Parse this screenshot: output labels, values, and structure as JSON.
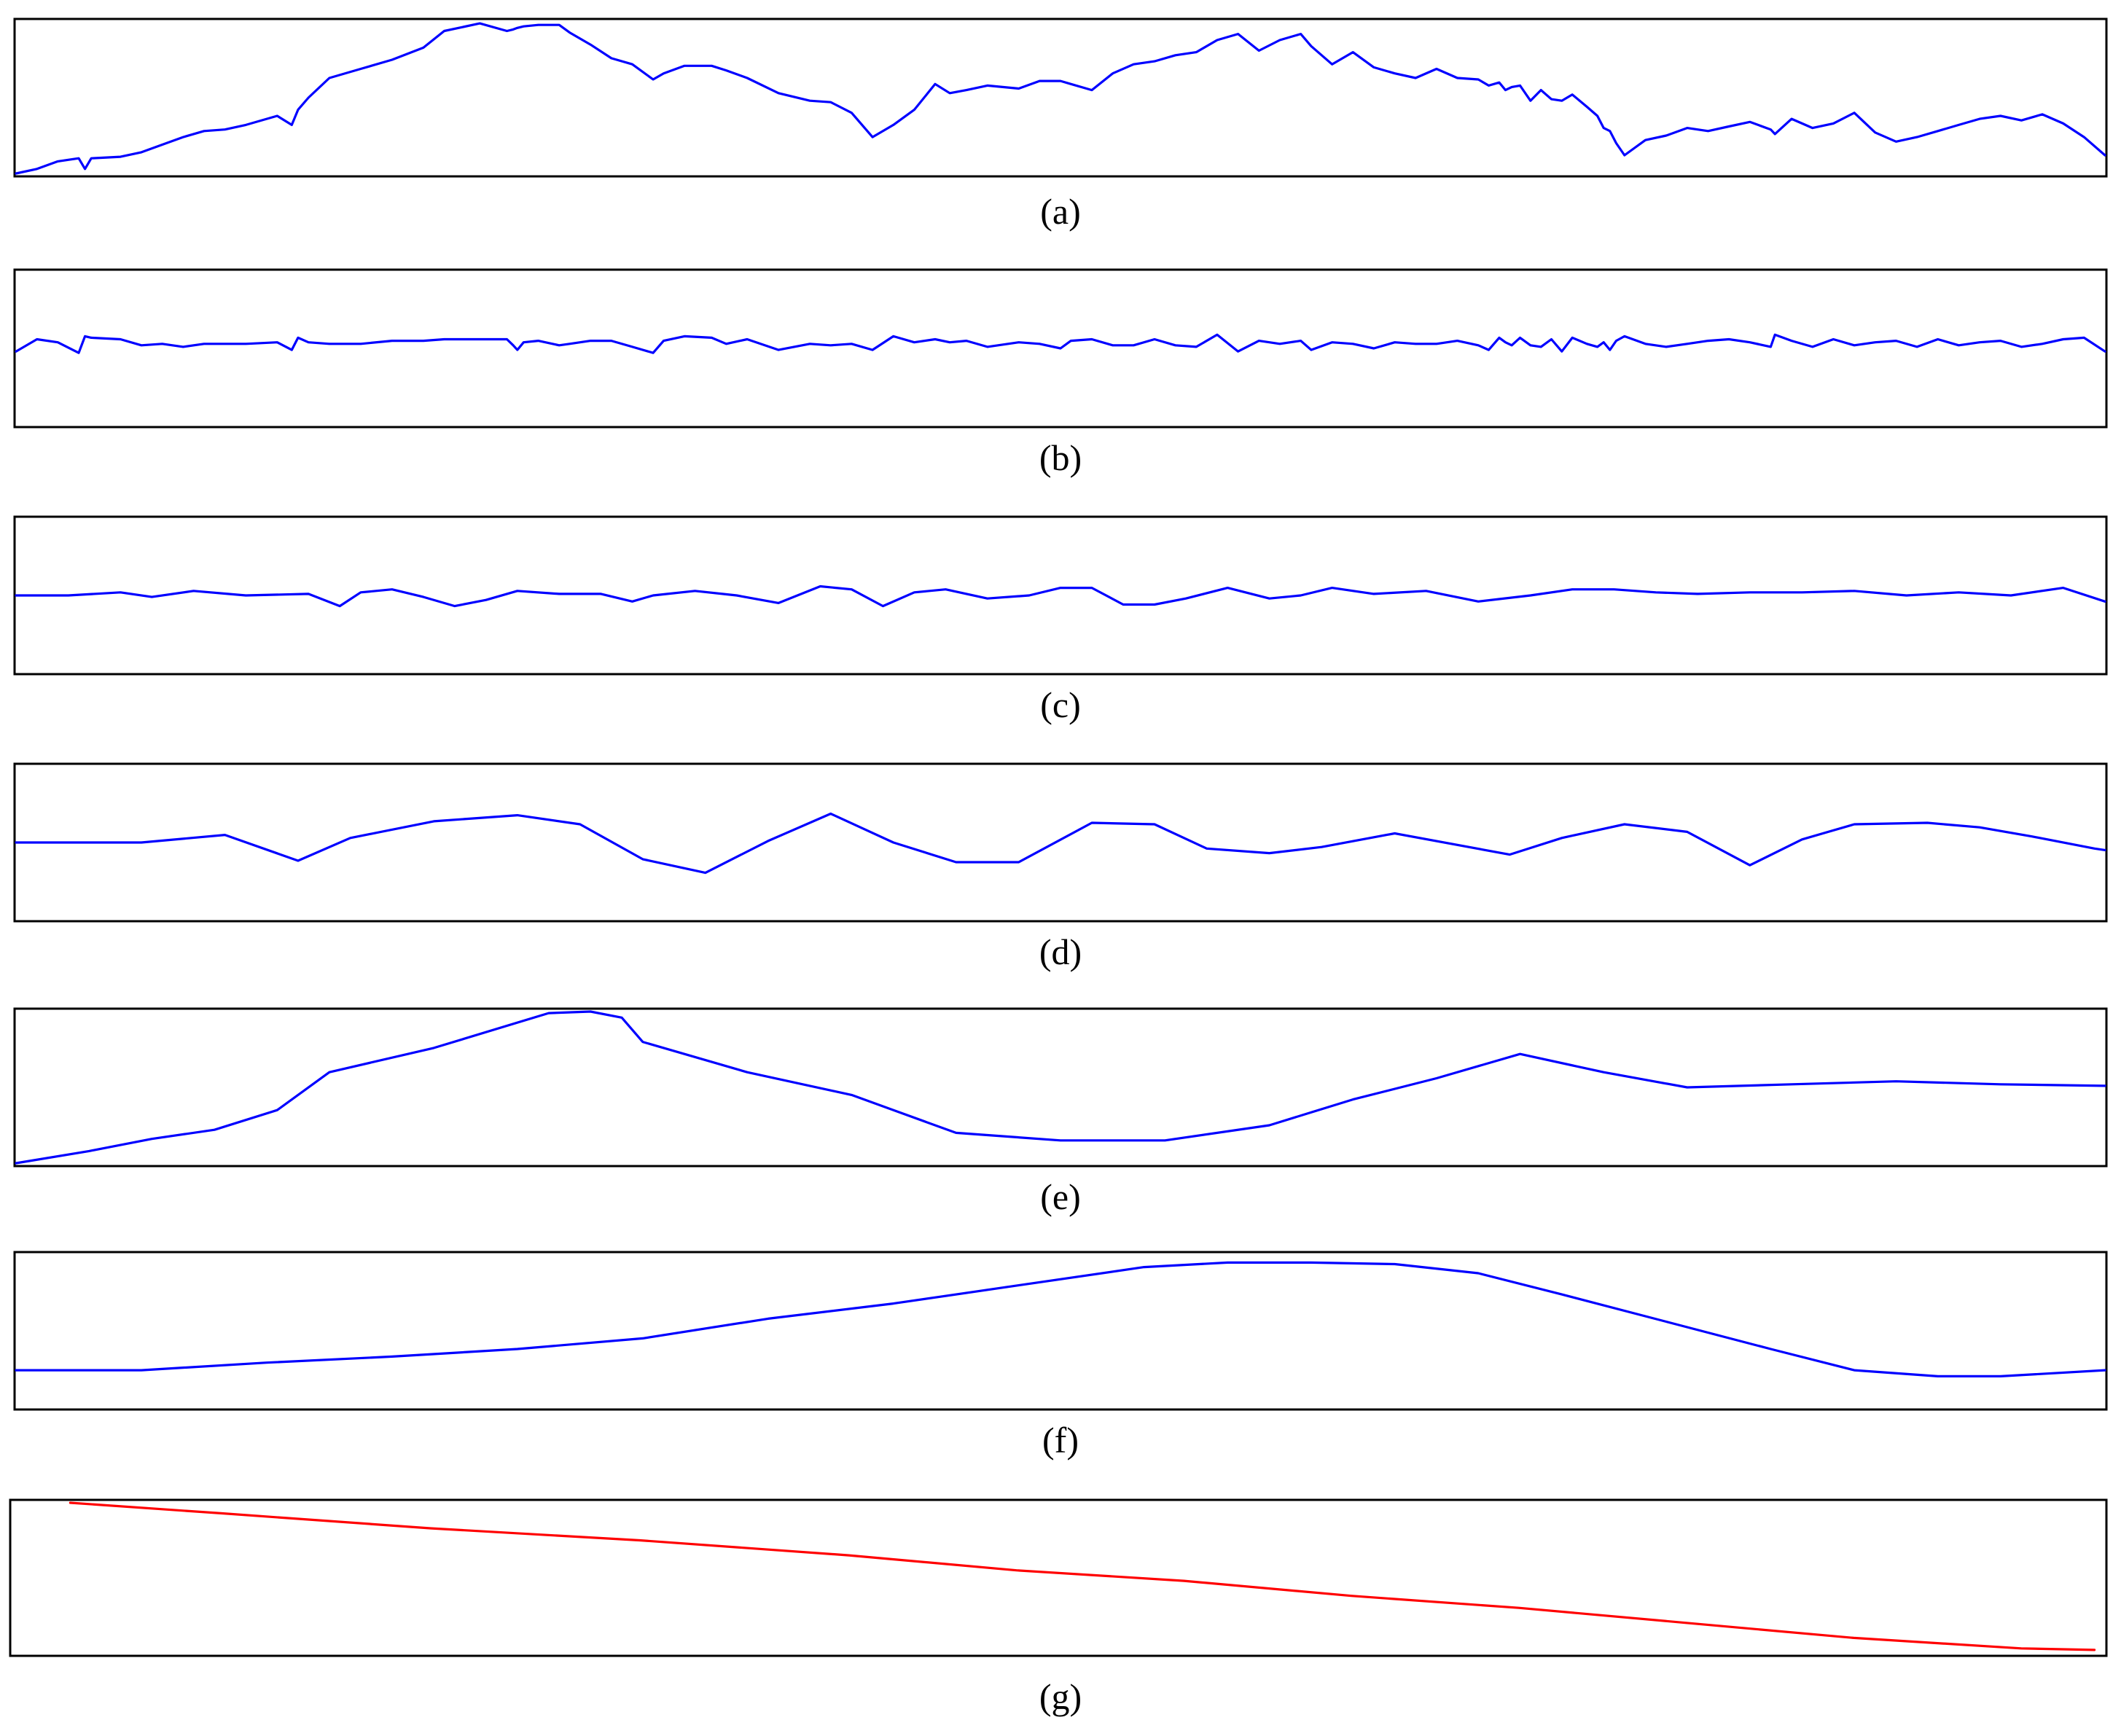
{
  "chart_data": [
    {
      "type": "line",
      "caption": "(a)",
      "color": "#0000ff",
      "xlim": [
        0,
        1000
      ],
      "ylim": [
        0,
        100
      ],
      "x": [
        0,
        10,
        20,
        30,
        33,
        36,
        50,
        60,
        70,
        80,
        90,
        100,
        110,
        125,
        132,
        135,
        140,
        150,
        165,
        180,
        195,
        205,
        222,
        235,
        238,
        240,
        243,
        250,
        260,
        265,
        275,
        285,
        295,
        305,
        310,
        320,
        333,
        340,
        350,
        365,
        380,
        390,
        400,
        410,
        420,
        430,
        440,
        447,
        455,
        465,
        480,
        490,
        500,
        505,
        515,
        525,
        535,
        545,
        555,
        565,
        575,
        585,
        595,
        605,
        615,
        620,
        630,
        640,
        650,
        660,
        670,
        680,
        690,
        700,
        705,
        710,
        713,
        716,
        720,
        725,
        730,
        735,
        740,
        745,
        752,
        757,
        760,
        763,
        766,
        770,
        780,
        790,
        800,
        810,
        820,
        830,
        840,
        842,
        850,
        860,
        870,
        880,
        890,
        900,
        910,
        920,
        930,
        940,
        950,
        960,
        970,
        980,
        990,
        1000
      ],
      "y": [
        0,
        3,
        8,
        10,
        3,
        10,
        11,
        14,
        19,
        24,
        28,
        29,
        32,
        38,
        32,
        42,
        50,
        63,
        69,
        75,
        83,
        94,
        99,
        94,
        95,
        96,
        97,
        98,
        98,
        93,
        85,
        76,
        72,
        62,
        66,
        71,
        71,
        68,
        63,
        53,
        48,
        47,
        40,
        24,
        32,
        42,
        59,
        53,
        55,
        58,
        56,
        61,
        61,
        59,
        55,
        66,
        72,
        74,
        78,
        80,
        88,
        92,
        81,
        88,
        92,
        84,
        72,
        80,
        70,
        66,
        63,
        69,
        63,
        62,
        58,
        60,
        55,
        57,
        58,
        48,
        55,
        49,
        48,
        52,
        44,
        38,
        30,
        28,
        20,
        12,
        22,
        25,
        30,
        28,
        31,
        34,
        29,
        26,
        36,
        30,
        33,
        40,
        27,
        21,
        24,
        28,
        32,
        36,
        38,
        35,
        39,
        33,
        24,
        12
      ]
    },
    {
      "type": "line",
      "caption": "(b)",
      "color": "#0000ff",
      "xlim": [
        0,
        1000
      ],
      "ylim": [
        0,
        100
      ],
      "x": [
        0,
        10,
        20,
        30,
        33,
        36,
        50,
        60,
        70,
        80,
        90,
        100,
        110,
        125,
        132,
        135,
        140,
        150,
        165,
        180,
        195,
        205,
        222,
        235,
        238,
        240,
        243,
        250,
        260,
        265,
        275,
        285,
        295,
        305,
        310,
        320,
        333,
        340,
        350,
        365,
        380,
        390,
        400,
        410,
        420,
        430,
        440,
        447,
        455,
        465,
        480,
        490,
        500,
        505,
        515,
        525,
        535,
        545,
        555,
        565,
        575,
        585,
        595,
        605,
        615,
        620,
        630,
        640,
        650,
        660,
        670,
        680,
        690,
        700,
        705,
        710,
        713,
        716,
        720,
        725,
        730,
        735,
        740,
        745,
        752,
        757,
        760,
        763,
        766,
        770,
        780,
        790,
        800,
        810,
        820,
        830,
        840,
        842,
        850,
        860,
        870,
        880,
        890,
        900,
        910,
        920,
        930,
        940,
        950,
        960,
        970,
        980,
        990,
        1000
      ],
      "y": [
        48,
        56,
        54,
        47,
        58,
        57,
        56,
        52,
        53,
        51,
        53,
        53,
        53,
        54,
        49,
        57,
        54,
        53,
        53,
        55,
        55,
        56,
        56,
        56,
        52,
        49,
        54,
        55,
        52,
        53,
        55,
        55,
        51,
        47,
        55,
        58,
        57,
        53,
        56,
        49,
        53,
        52,
        53,
        49,
        58,
        54,
        56,
        54,
        55,
        51,
        54,
        53,
        50,
        55,
        56,
        52,
        52,
        56,
        52,
        51,
        59,
        48,
        55,
        53,
        55,
        49,
        54,
        53,
        50,
        54,
        53,
        53,
        55,
        52,
        49,
        57,
        54,
        52,
        57,
        52,
        51,
        56,
        48,
        57,
        53,
        51,
        54,
        49,
        55,
        58,
        53,
        51,
        53,
        55,
        56,
        54,
        51,
        59,
        55,
        51,
        56,
        52,
        54,
        55,
        51,
        56,
        52,
        54,
        55,
        51,
        53,
        56,
        57,
        48
      ]
    },
    {
      "type": "line",
      "caption": "(c)",
      "color": "#0000ff",
      "xlim": [
        0,
        1000
      ],
      "ylim": [
        0,
        100
      ],
      "x": [
        0,
        25,
        50,
        65,
        85,
        110,
        140,
        155,
        165,
        180,
        195,
        210,
        225,
        240,
        260,
        280,
        295,
        305,
        325,
        345,
        365,
        385,
        400,
        415,
        430,
        445,
        465,
        485,
        500,
        515,
        530,
        545,
        560,
        580,
        600,
        615,
        630,
        650,
        675,
        700,
        725,
        745,
        765,
        785,
        805,
        830,
        855,
        880,
        905,
        930,
        955,
        980,
        1000
      ],
      "y": [
        50,
        50,
        52,
        49,
        53,
        50,
        51,
        43,
        52,
        54,
        49,
        43,
        47,
        53,
        51,
        51,
        46,
        50,
        53,
        50,
        45,
        56,
        54,
        43,
        52,
        54,
        48,
        50,
        55,
        55,
        44,
        44,
        48,
        55,
        48,
        50,
        55,
        51,
        53,
        46,
        50,
        54,
        54,
        52,
        51,
        52,
        52,
        53,
        50,
        52,
        50,
        55,
        46
      ]
    },
    {
      "type": "line",
      "caption": "(d)",
      "color": "#0000ff",
      "xlim": [
        0,
        1000
      ],
      "ylim": [
        0,
        100
      ],
      "x": [
        0,
        60,
        100,
        135,
        160,
        200,
        240,
        270,
        300,
        330,
        360,
        390,
        420,
        450,
        480,
        515,
        545,
        570,
        600,
        625,
        660,
        715,
        740,
        770,
        800,
        830,
        855,
        880,
        915,
        940,
        965,
        995,
        1000
      ],
      "y": [
        50,
        50,
        55,
        38,
        53,
        64,
        68,
        62,
        39,
        30,
        51,
        69,
        50,
        37,
        37,
        63,
        62,
        46,
        43,
        47,
        56,
        42,
        53,
        62,
        57,
        35,
        52,
        62,
        63,
        60,
        54,
        46,
        45
      ]
    },
    {
      "type": "line",
      "caption": "(e)",
      "color": "#0000ff",
      "xlim": [
        0,
        1000
      ],
      "ylim": [
        0,
        100
      ],
      "x": [
        0,
        35,
        65,
        95,
        125,
        150,
        200,
        255,
        275,
        290,
        300,
        350,
        400,
        450,
        500,
        550,
        600,
        640,
        680,
        720,
        760,
        800,
        850,
        900,
        950,
        1000
      ],
      "y": [
        0,
        8,
        16,
        22,
        35,
        60,
        76,
        99,
        100,
        96,
        80,
        60,
        45,
        20,
        15,
        15,
        25,
        42,
        56,
        72,
        60,
        50,
        52,
        54,
        52,
        51
      ]
    },
    {
      "type": "line",
      "caption": "(f)",
      "color": "#0000ff",
      "xlim": [
        0,
        1000
      ],
      "ylim": [
        0,
        100
      ],
      "x": [
        0,
        60,
        120,
        180,
        240,
        300,
        360,
        420,
        480,
        540,
        580,
        620,
        660,
        700,
        740,
        790,
        840,
        880,
        920,
        950,
        1000
      ],
      "y": [
        24,
        24,
        29,
        33,
        38,
        45,
        58,
        68,
        80,
        92,
        95,
        95,
        94,
        88,
        74,
        56,
        38,
        24,
        20,
        20,
        24
      ]
    },
    {
      "type": "line",
      "caption": "(g)",
      "color": "#ff0000",
      "xlim": [
        0,
        1000
      ],
      "ylim": [
        0,
        100
      ],
      "x": [
        28,
        100,
        200,
        300,
        400,
        480,
        560,
        640,
        720,
        800,
        880,
        960,
        995
      ],
      "y": [
        100,
        93,
        83,
        75,
        65,
        55,
        48,
        38,
        30,
        20,
        10,
        3,
        2
      ]
    }
  ]
}
